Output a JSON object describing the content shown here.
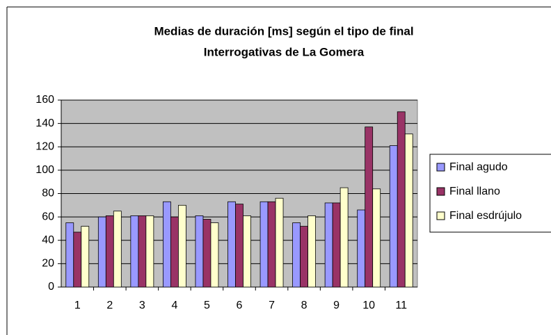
{
  "chart_data": {
    "type": "bar",
    "title": "Medias de duración [ms] según el tipo de final",
    "subtitle": "Interrogativas de La Gomera",
    "categories": [
      "1",
      "2",
      "3",
      "4",
      "5",
      "6",
      "7",
      "8",
      "9",
      "10",
      "11"
    ],
    "series": [
      {
        "name": "Final agudo",
        "color": "#9999ff",
        "values": [
          55,
          60,
          61,
          73,
          61,
          73,
          73,
          55,
          72,
          66,
          121
        ]
      },
      {
        "name": "Final llano",
        "color": "#993366",
        "values": [
          47,
          61,
          61,
          60,
          58,
          71,
          73,
          52,
          72,
          137,
          150
        ]
      },
      {
        "name": "Final esdrújulo",
        "color": "#ffffcc",
        "values": [
          52,
          65,
          61,
          70,
          55,
          61,
          76,
          61,
          85,
          84,
          131
        ]
      }
    ],
    "ylim": [
      0,
      160
    ],
    "yticks": [
      0,
      20,
      40,
      60,
      80,
      100,
      120,
      140,
      160
    ],
    "grid": true,
    "legend": "right",
    "plot_background": "#c0c0c0"
  }
}
